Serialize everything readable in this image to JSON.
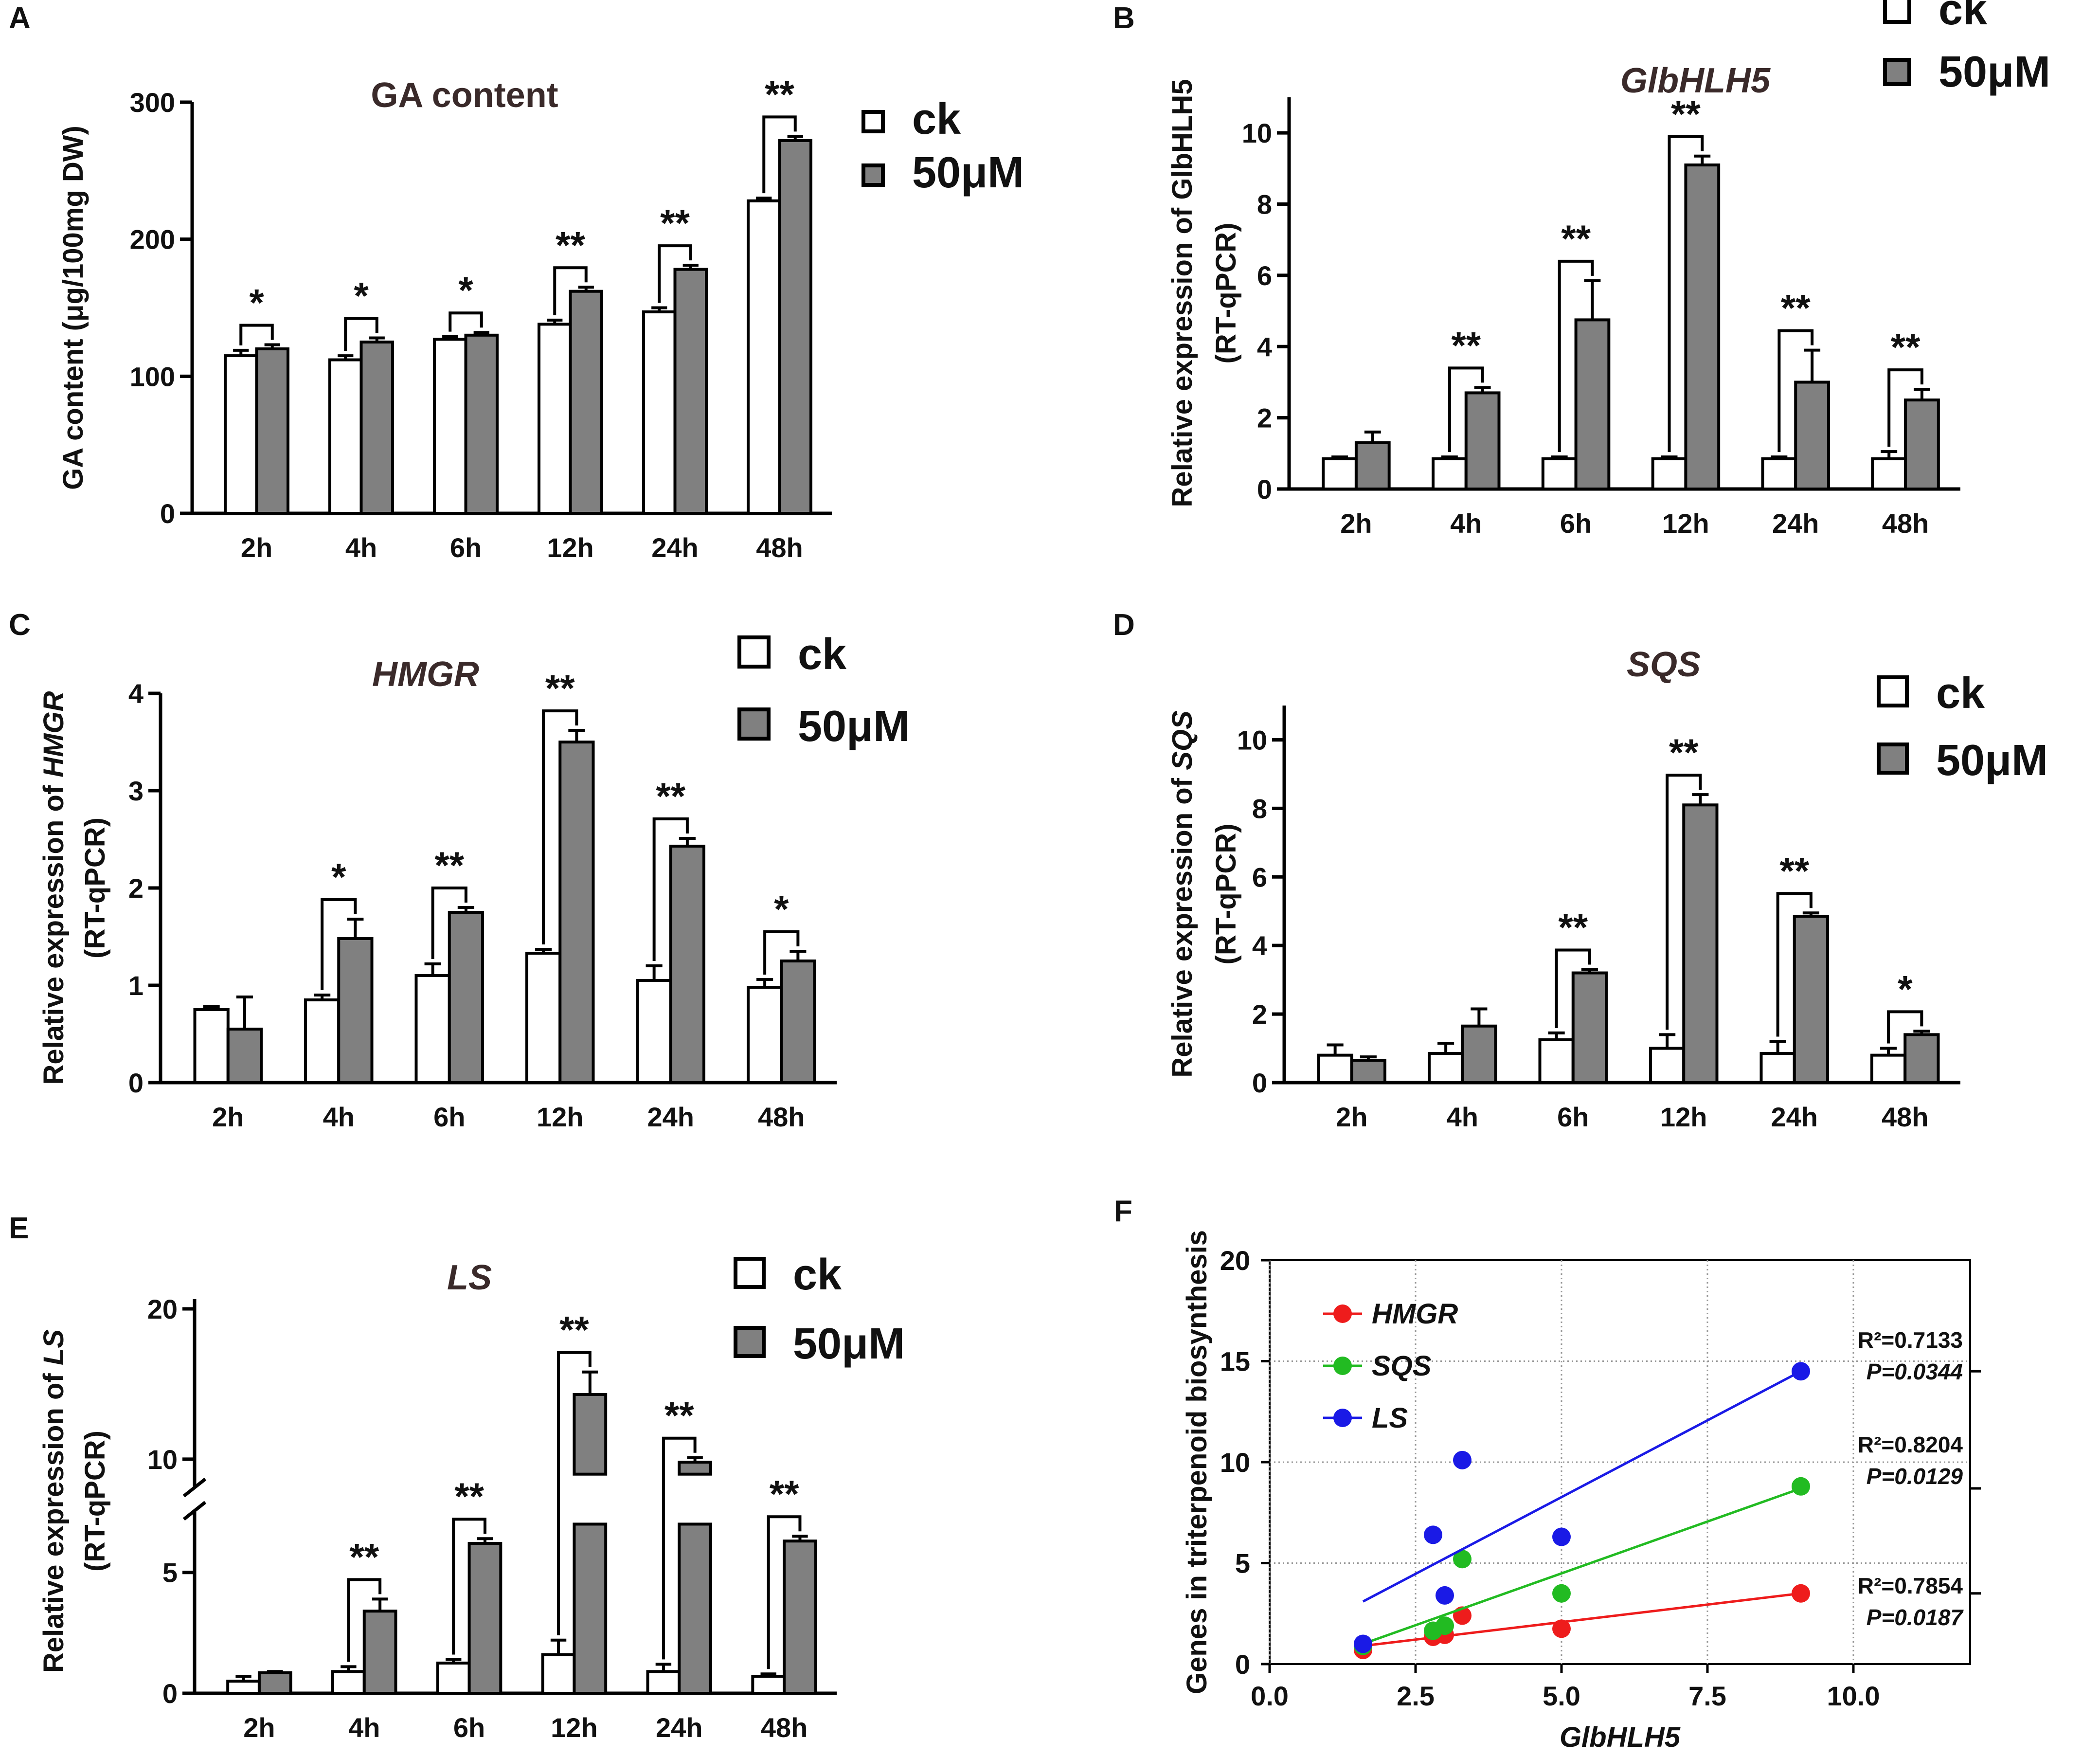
{
  "legend": {
    "ck": "ck",
    "treat": "50μM"
  },
  "colors": {
    "ck": "#ffffff",
    "treat": "#808080",
    "HMGR": "#ee1c1c",
    "SQS": "#22bb22",
    "LS": "#1a1ae6"
  },
  "chart_data": [
    {
      "panel": "A",
      "type": "bar",
      "title": "GA content",
      "title_italic": false,
      "ylabel": [
        "GA content (μg/100mg DW)"
      ],
      "categories": [
        "2h",
        "4h",
        "6h",
        "12h",
        "24h",
        "48h"
      ],
      "ylim": [
        0,
        300
      ],
      "yticks": [
        "0",
        "100",
        "200",
        "300"
      ],
      "series": [
        {
          "name": "ck",
          "values": [
            115,
            112,
            127,
            138,
            147,
            228
          ],
          "errors": [
            4,
            3,
            2,
            3,
            3,
            2
          ]
        },
        {
          "name": "50μM",
          "values": [
            120,
            125,
            130,
            162,
            178,
            272
          ],
          "errors": [
            3,
            3,
            2,
            3,
            3,
            3
          ]
        }
      ],
      "significance": [
        "*",
        "*",
        "*",
        "**",
        "**",
        "**"
      ]
    },
    {
      "panel": "B",
      "type": "bar",
      "title": "GlbHLH5",
      "title_italic": true,
      "ylabel": [
        "Relative expression of GlbHLH5",
        "(RT-qPCR)"
      ],
      "categories": [
        "2h",
        "4h",
        "6h",
        "12h",
        "24h",
        "48h"
      ],
      "ylim": [
        0,
        11
      ],
      "yticks": [
        "0",
        "2",
        "4",
        "6",
        "8",
        "10"
      ],
      "series": [
        {
          "name": "ck",
          "values": [
            0.85,
            0.85,
            0.85,
            0.85,
            0.85,
            0.85
          ],
          "errors": [
            0.05,
            0.05,
            0.05,
            0.05,
            0.05,
            0.2
          ]
        },
        {
          "name": "50μM",
          "values": [
            1.3,
            2.7,
            4.75,
            9.1,
            3.0,
            2.5
          ],
          "errors": [
            0.3,
            0.15,
            1.1,
            0.25,
            0.9,
            0.3
          ]
        }
      ],
      "significance": [
        "",
        "**",
        "**",
        "**",
        "**",
        "**"
      ]
    },
    {
      "panel": "C",
      "type": "bar",
      "title": "HMGR",
      "title_italic": true,
      "ylabel": [
        "Relative expression of HMGR",
        "(RT-qPCR)"
      ],
      "ylabel_italic_word": "HMGR",
      "categories": [
        "2h",
        "4h",
        "6h",
        "12h",
        "24h",
        "48h"
      ],
      "ylim": [
        0,
        4
      ],
      "yticks": [
        "0",
        "1",
        "2",
        "3",
        "4"
      ],
      "series": [
        {
          "name": "ck",
          "values": [
            0.75,
            0.85,
            1.1,
            1.33,
            1.05,
            0.98
          ],
          "errors": [
            0.03,
            0.05,
            0.12,
            0.04,
            0.15,
            0.08
          ]
        },
        {
          "name": "50μM",
          "values": [
            0.55,
            1.48,
            1.75,
            3.5,
            2.43,
            1.25
          ],
          "errors": [
            0.33,
            0.2,
            0.05,
            0.12,
            0.08,
            0.1
          ]
        }
      ],
      "significance": [
        "",
        "*",
        "**",
        "**",
        "**",
        "*"
      ]
    },
    {
      "panel": "D",
      "type": "bar",
      "title": "SQS",
      "title_italic": true,
      "ylabel": [
        "Relative expression of SQS",
        "(RT-qPCR)"
      ],
      "ylabel_italic_word": "SQS",
      "categories": [
        "2h",
        "4h",
        "6h",
        "12h",
        "24h",
        "48h"
      ],
      "ylim": [
        0,
        11
      ],
      "yticks": [
        "0",
        "2",
        "4",
        "6",
        "8",
        "10"
      ],
      "series": [
        {
          "name": "ck",
          "values": [
            0.8,
            0.85,
            1.25,
            1.0,
            0.85,
            0.8
          ],
          "errors": [
            0.3,
            0.3,
            0.2,
            0.4,
            0.35,
            0.2
          ]
        },
        {
          "name": "50μM",
          "values": [
            0.65,
            1.65,
            3.2,
            8.1,
            4.85,
            1.4
          ],
          "errors": [
            0.1,
            0.5,
            0.1,
            0.3,
            0.1,
            0.1
          ]
        }
      ],
      "significance": [
        "",
        "",
        "**",
        "**",
        "**",
        "*"
      ]
    },
    {
      "panel": "E",
      "type": "bar",
      "title": "LS",
      "title_italic": true,
      "ylabel": [
        "Relative expression of LS",
        "(RT-qPCR)"
      ],
      "ylabel_italic_word": "LS",
      "categories": [
        "2h",
        "4h",
        "6h",
        "12h",
        "24h",
        "48h"
      ],
      "ylim": [
        0,
        20
      ],
      "axis_break": [
        7,
        9
      ],
      "yticks": [
        "0",
        "5",
        "10",
        "20"
      ],
      "series": [
        {
          "name": "ck",
          "values": [
            0.5,
            0.9,
            1.25,
            1.6,
            0.9,
            0.7
          ],
          "errors": [
            0.2,
            0.2,
            0.15,
            0.6,
            0.3,
            0.1
          ]
        },
        {
          "name": "50μM",
          "values": [
            0.85,
            3.4,
            6.2,
            14.3,
            9.8,
            6.3
          ],
          "errors": [
            0.05,
            0.5,
            0.2,
            1.5,
            0.3,
            0.2
          ]
        }
      ],
      "significance": [
        "",
        "**",
        "**",
        "**",
        "**",
        "**"
      ]
    },
    {
      "panel": "F",
      "type": "scatter",
      "xlabel": "GlbHLH5",
      "ylabel": "Genes in triterpenoid biosynthesis",
      "xlim": [
        0,
        12
      ],
      "ylim": [
        0,
        20
      ],
      "xticks": [
        "0.0",
        "2.5",
        "5.0",
        "7.5",
        "10.0"
      ],
      "yticks": [
        "0",
        "5",
        "10",
        "15",
        "20"
      ],
      "series": [
        {
          "name": "HMGR",
          "points": [
            [
              1.6,
              0.7
            ],
            [
              2.8,
              1.35
            ],
            [
              3.0,
              1.45
            ],
            [
              3.3,
              2.4
            ],
            [
              5.0,
              1.75
            ],
            [
              9.1,
              3.5
            ]
          ],
          "fit": [
            [
              1.6,
              0.9
            ],
            [
              9.1,
              3.5
            ]
          ],
          "r2": "R²=0.7854",
          "p": "P=0.0187"
        },
        {
          "name": "SQS",
          "points": [
            [
              1.6,
              0.9
            ],
            [
              2.8,
              1.65
            ],
            [
              3.0,
              1.9
            ],
            [
              3.3,
              5.2
            ],
            [
              5.0,
              3.5
            ],
            [
              9.1,
              8.8
            ]
          ],
          "fit": [
            [
              1.6,
              1.0
            ],
            [
              9.1,
              8.7
            ]
          ],
          "r2": "R²=0.8204",
          "p": "P=0.0129"
        },
        {
          "name": "LS",
          "points": [
            [
              1.6,
              1.0
            ],
            [
              2.8,
              6.4
            ],
            [
              3.0,
              3.4
            ],
            [
              3.3,
              10.1
            ],
            [
              5.0,
              6.3
            ],
            [
              9.1,
              14.5
            ]
          ],
          "fit": [
            [
              1.6,
              3.1
            ],
            [
              9.1,
              14.5
            ]
          ],
          "r2": "R²=0.7133",
          "p": "P=0.0344"
        }
      ]
    }
  ]
}
